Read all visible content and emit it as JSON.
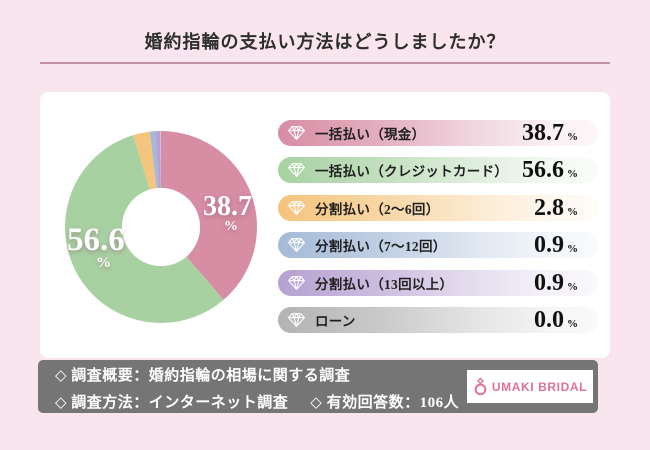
{
  "title": "婚約指輪の支払い方法はどうしましたか？",
  "labels": {
    "percent": "%"
  },
  "chart_data": {
    "type": "pie",
    "donut": true,
    "title": "婚約指輪の支払い方法はどうしましたか？",
    "start_angle_deg": 0,
    "direction": "clockwise",
    "categories": [
      "一括払い（現金）",
      "一括払い（クレジットカード）",
      "分割払い（2～6回）",
      "分割払い（7～12回）",
      "分割払い（13回以上）",
      "ローン"
    ],
    "values": [
      38.7,
      56.6,
      2.8,
      0.9,
      0.9,
      0.0
    ],
    "colors": [
      "#d78da4",
      "#a8d1a2",
      "#f5c47d",
      "#a5bad7",
      "#b6a1d2",
      "#b3b3b3"
    ],
    "unit": "%",
    "inner_labels": [
      "38.7",
      "56.6"
    ]
  },
  "legend": {
    "values": [
      "38.7",
      "56.6",
      "2.8",
      "0.9",
      "0.9",
      "0.0"
    ]
  },
  "footer": {
    "line1": "◇ 調査概要：婚約指輪の相場に関する調査",
    "line2a": "◇ 調査方法：インターネット調査",
    "line2b": "◇ 有効回答数：106人",
    "logo_text": "UMAKI BRIDAL"
  },
  "colors": {
    "background": "#f8e5ed",
    "card": "#ffffff",
    "divider": "#c48fa4",
    "footer_bg": "#757575",
    "brand_pink": "#e0719a",
    "text": "#2e2e2e"
  }
}
